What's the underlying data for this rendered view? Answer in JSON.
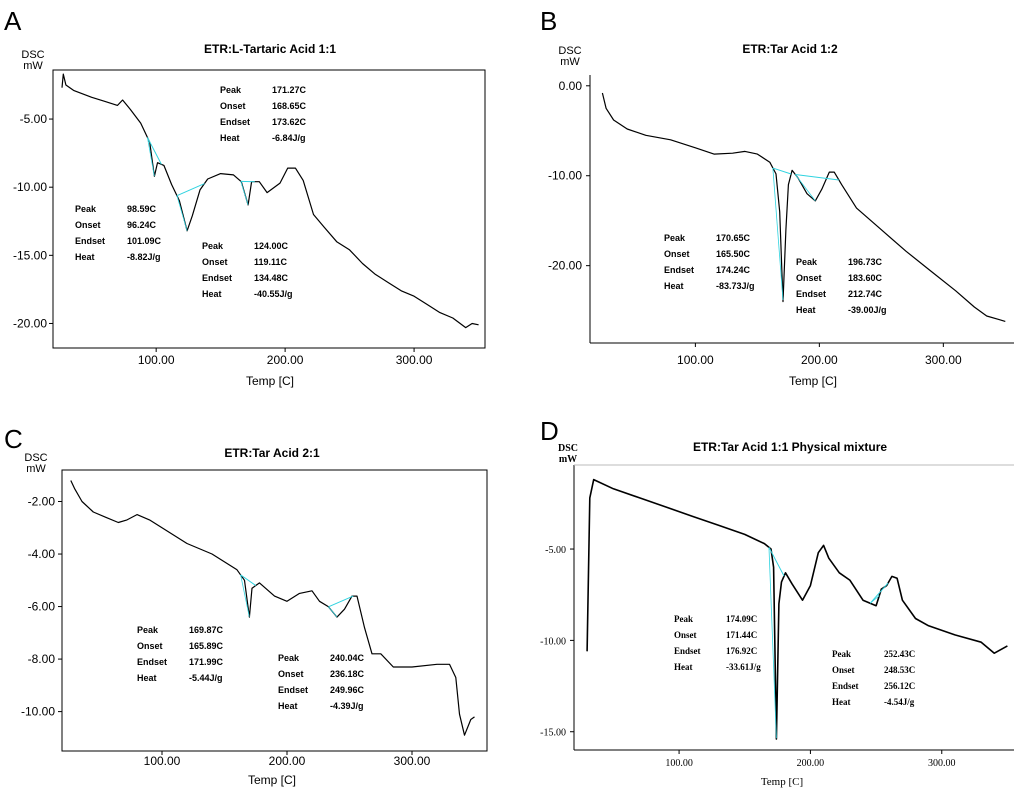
{
  "chart_data": [
    {
      "panel": "A",
      "type": "line",
      "title": "ETR:L-Tartaric Acid 1:1",
      "ylabel": "DSC\nmW",
      "xlabel": "Temp [C]",
      "xlim": [
        20,
        355
      ],
      "ylim": [
        -21.8,
        -1.4
      ],
      "xticks": [
        "100.00",
        "200.00",
        "300.00"
      ],
      "yticks": [
        "-5.00",
        "-10.00",
        "-15.00",
        "-20.00"
      ],
      "series": [
        {
          "points": [
            [
              27,
              -2.7
            ],
            [
              28,
              -1.7
            ],
            [
              30,
              -2.5
            ],
            [
              36,
              -2.9
            ],
            [
              50,
              -3.4
            ],
            [
              60,
              -3.7
            ],
            [
              70,
              -4.0
            ],
            [
              74,
              -3.6
            ],
            [
              80,
              -4.3
            ],
            [
              88,
              -5.3
            ],
            [
              95,
              -6.7
            ],
            [
              98.6,
              -9.2
            ],
            [
              101,
              -8.2
            ],
            [
              106,
              -8.4
            ],
            [
              112,
              -9.8
            ],
            [
              118,
              -11.0
            ],
            [
              124,
              -13.2
            ],
            [
              128,
              -12.1
            ],
            [
              134,
              -10.2
            ],
            [
              140,
              -9.4
            ],
            [
              150,
              -9.0
            ],
            [
              160,
              -9.1
            ],
            [
              166,
              -9.6
            ],
            [
              171.3,
              -11.3
            ],
            [
              174,
              -9.6
            ],
            [
              180,
              -9.6
            ],
            [
              186,
              -10.4
            ],
            [
              196,
              -9.7
            ],
            [
              202,
              -8.6
            ],
            [
              208,
              -8.6
            ],
            [
              214,
              -9.5
            ],
            [
              222,
              -12.0
            ],
            [
              230,
              -12.9
            ],
            [
              240,
              -14.0
            ],
            [
              250,
              -14.6
            ],
            [
              260,
              -15.6
            ],
            [
              270,
              -16.4
            ],
            [
              280,
              -17.0
            ],
            [
              290,
              -17.6
            ],
            [
              300,
              -18.0
            ],
            [
              310,
              -18.6
            ],
            [
              320,
              -19.2
            ],
            [
              330,
              -19.6
            ],
            [
              340,
              -20.3
            ],
            [
              345,
              -20.0
            ],
            [
              350,
              -20.1
            ]
          ]
        }
      ],
      "annotations": [
        {
          "rows": [
            [
              "Peak",
              "171.27C"
            ],
            [
              "Onset",
              "168.65C"
            ],
            [
              "Endset",
              "173.62C"
            ],
            [
              "Heat",
              "-6.84J/g"
            ]
          ]
        },
        {
          "rows": [
            [
              "Peak",
              "98.59C"
            ],
            [
              "Onset",
              "96.24C"
            ],
            [
              "Endset",
              "101.09C"
            ],
            [
              "Heat",
              "-8.82J/g"
            ]
          ]
        },
        {
          "rows": [
            [
              "Peak",
              "124.00C"
            ],
            [
              "Onset",
              "119.11C"
            ],
            [
              "Endset",
              "134.48C"
            ],
            [
              "Heat",
              "-40.55J/g"
            ]
          ]
        }
      ]
    },
    {
      "panel": "B",
      "type": "line",
      "title": "ETR:Tar Acid 1:2",
      "ylabel": "DSC\nmW",
      "xlabel": "Temp [C]",
      "xlim": [
        15,
        357
      ],
      "ylim": [
        -28.6,
        1.2
      ],
      "xticks": [
        "100.00",
        "200.00",
        "300.00"
      ],
      "yticks": [
        "0.00",
        "-10.00",
        "-20.00"
      ],
      "series": [
        {
          "points": [
            [
              25,
              -0.8
            ],
            [
              28,
              -2.5
            ],
            [
              34,
              -3.8
            ],
            [
              45,
              -4.8
            ],
            [
              60,
              -5.5
            ],
            [
              80,
              -6.0
            ],
            [
              100,
              -6.9
            ],
            [
              115,
              -7.6
            ],
            [
              130,
              -7.5
            ],
            [
              140,
              -7.3
            ],
            [
              150,
              -7.6
            ],
            [
              160,
              -8.5
            ],
            [
              165,
              -9.8
            ],
            [
              168,
              -14
            ],
            [
              170.7,
              -24.0
            ],
            [
              173,
              -16
            ],
            [
              175,
              -11
            ],
            [
              178,
              -9.4
            ],
            [
              183,
              -10.3
            ],
            [
              190,
              -12.0
            ],
            [
              196.7,
              -12.8
            ],
            [
              202,
              -11.5
            ],
            [
              208,
              -9.6
            ],
            [
              212,
              -9.6
            ],
            [
              218,
              -11.0
            ],
            [
              230,
              -13.6
            ],
            [
              250,
              -16.0
            ],
            [
              270,
              -18.4
            ],
            [
              290,
              -20.6
            ],
            [
              310,
              -22.8
            ],
            [
              325,
              -24.6
            ],
            [
              335,
              -25.6
            ],
            [
              345,
              -26.0
            ],
            [
              350,
              -26.2
            ]
          ]
        }
      ],
      "annotations": [
        {
          "rows": [
            [
              "Peak",
              "170.65C"
            ],
            [
              "Onset",
              "165.50C"
            ],
            [
              "Endset",
              "174.24C"
            ],
            [
              "Heat",
              "-83.73J/g"
            ]
          ]
        },
        {
          "rows": [
            [
              "Peak",
              "196.73C"
            ],
            [
              "Onset",
              "183.60C"
            ],
            [
              "Endset",
              "212.74C"
            ],
            [
              "Heat",
              "-39.00J/g"
            ]
          ]
        }
      ]
    },
    {
      "panel": "C",
      "type": "line",
      "title": "ETR:Tar Acid 2:1",
      "ylabel": "DSC\nmW",
      "xlabel": "Temp [C]",
      "xlim": [
        20,
        360
      ],
      "ylim": [
        -11.5,
        -0.8
      ],
      "xticks": [
        "100.00",
        "200.00",
        "300.00"
      ],
      "yticks": [
        "-2.00",
        "-4.00",
        "-6.00",
        "-8.00",
        "-10.00"
      ],
      "series": [
        {
          "points": [
            [
              27,
              -1.2
            ],
            [
              30,
              -1.5
            ],
            [
              36,
              -2.0
            ],
            [
              45,
              -2.4
            ],
            [
              55,
              -2.6
            ],
            [
              65,
              -2.8
            ],
            [
              72,
              -2.7
            ],
            [
              80,
              -2.5
            ],
            [
              90,
              -2.7
            ],
            [
              100,
              -3.0
            ],
            [
              120,
              -3.6
            ],
            [
              140,
              -4.0
            ],
            [
              160,
              -4.6
            ],
            [
              166,
              -5.0
            ],
            [
              169.9,
              -6.4
            ],
            [
              172,
              -5.3
            ],
            [
              178,
              -5.1
            ],
            [
              190,
              -5.6
            ],
            [
              200,
              -5.8
            ],
            [
              210,
              -5.5
            ],
            [
              220,
              -5.4
            ],
            [
              226,
              -5.8
            ],
            [
              233,
              -6.0
            ],
            [
              240,
              -6.4
            ],
            [
              246,
              -6.1
            ],
            [
              252,
              -5.6
            ],
            [
              256,
              -5.6
            ],
            [
              262,
              -6.8
            ],
            [
              268,
              -7.8
            ],
            [
              275,
              -7.8
            ],
            [
              285,
              -8.3
            ],
            [
              300,
              -8.3
            ],
            [
              320,
              -8.2
            ],
            [
              330,
              -8.2
            ],
            [
              335,
              -8.7
            ],
            [
              338,
              -10.1
            ],
            [
              342,
              -10.9
            ],
            [
              347,
              -10.3
            ],
            [
              350,
              -10.2
            ]
          ]
        }
      ],
      "annotations": [
        {
          "rows": [
            [
              "Peak",
              "169.87C"
            ],
            [
              "Onset",
              "165.89C"
            ],
            [
              "Endset",
              "171.99C"
            ],
            [
              "Heat",
              "-5.44J/g"
            ]
          ]
        },
        {
          "rows": [
            [
              "Peak",
              "240.04C"
            ],
            [
              "Onset",
              "236.18C"
            ],
            [
              "Endset",
              "249.96C"
            ],
            [
              "Heat",
              "-4.39J/g"
            ]
          ]
        }
      ]
    },
    {
      "panel": "D",
      "type": "line",
      "title": "ETR:Tar Acid 1:1 Physical mixture",
      "ylabel": "DSC\nmW",
      "xlabel": "Temp [C]",
      "xlim": [
        20,
        355
      ],
      "ylim": [
        -16.0,
        -0.4
      ],
      "xticks": [
        "100.00",
        "200.00",
        "300.00"
      ],
      "yticks": [
        "-5.00",
        "-10.00",
        "-15.00"
      ],
      "series": [
        {
          "points": [
            [
              30,
              -10.6
            ],
            [
              32,
              -2.2
            ],
            [
              35,
              -1.2
            ],
            [
              50,
              -1.7
            ],
            [
              70,
              -2.2
            ],
            [
              90,
              -2.7
            ],
            [
              110,
              -3.2
            ],
            [
              130,
              -3.7
            ],
            [
              150,
              -4.2
            ],
            [
              165,
              -4.7
            ],
            [
              170,
              -5.0
            ],
            [
              172,
              -6.0
            ],
            [
              174.1,
              -15.4
            ],
            [
              176,
              -8.0
            ],
            [
              178,
              -6.8
            ],
            [
              181,
              -6.3
            ],
            [
              186,
              -6.9
            ],
            [
              194,
              -7.8
            ],
            [
              200,
              -7.0
            ],
            [
              206,
              -5.2
            ],
            [
              210,
              -4.8
            ],
            [
              214,
              -5.5
            ],
            [
              222,
              -6.3
            ],
            [
              230,
              -6.7
            ],
            [
              240,
              -7.8
            ],
            [
              250,
              -8.1
            ],
            [
              254,
              -7.2
            ],
            [
              258,
              -7.0
            ],
            [
              262,
              -6.5
            ],
            [
              266,
              -6.6
            ],
            [
              270,
              -7.8
            ],
            [
              280,
              -8.8
            ],
            [
              290,
              -9.2
            ],
            [
              310,
              -9.7
            ],
            [
              330,
              -10.1
            ],
            [
              340,
              -10.7
            ],
            [
              350,
              -10.3
            ]
          ]
        }
      ],
      "annotations": [
        {
          "rows": [
            [
              "Peak",
              "174.09C"
            ],
            [
              "Onset",
              "171.44C"
            ],
            [
              "Endset",
              "176.92C"
            ],
            [
              "Heat",
              "-33.61J/g"
            ]
          ]
        },
        {
          "rows": [
            [
              "Peak",
              "252.43C"
            ],
            [
              "Onset",
              "248.53C"
            ],
            [
              "Endset",
              "256.12C"
            ],
            [
              "Heat",
              "-4.54J/g"
            ]
          ]
        }
      ]
    }
  ],
  "colors": {
    "line": "#000000",
    "baseline": "#2fd3e0",
    "axis": "#000000"
  }
}
